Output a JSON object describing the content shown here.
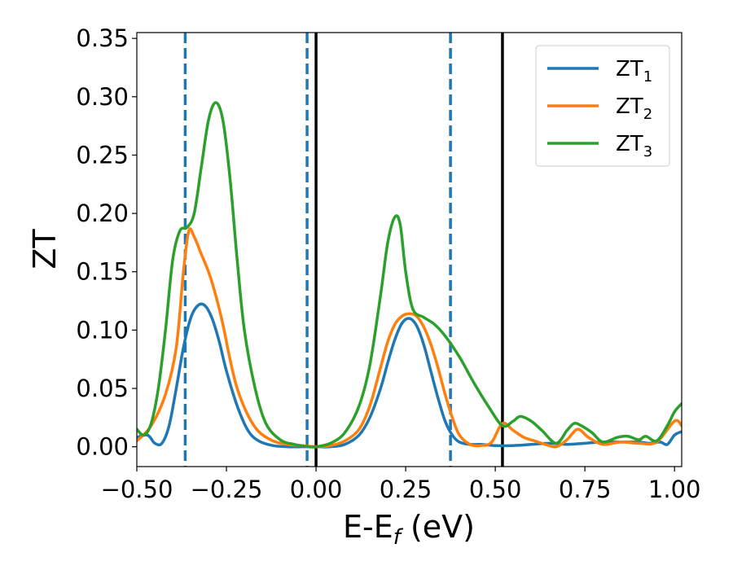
{
  "chart_data": {
    "type": "line",
    "xlabel": "E-E_f (eV)",
    "ylabel": "ZT",
    "xlim": [
      -0.5,
      1.02
    ],
    "ylim": [
      -0.017,
      0.355
    ],
    "xticks": [
      -0.5,
      -0.25,
      0.0,
      0.25,
      0.5,
      0.75,
      1.0
    ],
    "xtick_labels": [
      "−0.50",
      "−0.25",
      "0.00",
      "0.25",
      "0.50",
      "0.75",
      "1.00"
    ],
    "yticks": [
      0.0,
      0.05,
      0.1,
      0.15,
      0.2,
      0.25,
      0.3,
      0.35
    ],
    "ytick_labels": [
      "0.00",
      "0.05",
      "0.10",
      "0.15",
      "0.20",
      "0.25",
      "0.30",
      "0.35"
    ],
    "grid": false,
    "legend_position": "top-right",
    "series": [
      {
        "name": "ZT_1",
        "color": "#1f77b4",
        "x": [
          -0.5,
          -0.47,
          -0.45,
          -0.43,
          -0.41,
          -0.39,
          -0.37,
          -0.35,
          -0.33,
          -0.31,
          -0.29,
          -0.27,
          -0.25,
          -0.22,
          -0.19,
          -0.16,
          -0.12,
          -0.08,
          -0.04,
          0.0,
          0.04,
          0.08,
          0.12,
          0.15,
          0.18,
          0.2,
          0.22,
          0.24,
          0.26,
          0.28,
          0.3,
          0.32,
          0.34,
          0.36,
          0.38,
          0.4,
          0.43,
          0.46,
          0.5,
          0.55,
          0.6,
          0.65,
          0.7,
          0.75,
          0.8,
          0.85,
          0.9,
          0.93,
          0.96,
          0.98,
          1.0,
          1.02
        ],
        "values": [
          0.008,
          0.01,
          0.003,
          0.003,
          0.018,
          0.05,
          0.085,
          0.11,
          0.121,
          0.121,
          0.11,
          0.09,
          0.065,
          0.035,
          0.014,
          0.005,
          0.001,
          0.0,
          0.0,
          0.0,
          0.0,
          0.002,
          0.01,
          0.025,
          0.05,
          0.072,
          0.092,
          0.106,
          0.11,
          0.104,
          0.088,
          0.065,
          0.042,
          0.022,
          0.01,
          0.004,
          0.002,
          0.002,
          0.001,
          0.001,
          0.002,
          0.003,
          0.002,
          0.003,
          0.004,
          0.004,
          0.004,
          0.003,
          0.004,
          0.002,
          0.01,
          0.013
        ]
      },
      {
        "name": "ZT_2",
        "color": "#ff7f0e",
        "x": [
          -0.5,
          -0.46,
          -0.42,
          -0.39,
          -0.37,
          -0.355,
          -0.34,
          -0.32,
          -0.3,
          -0.28,
          -0.26,
          -0.24,
          -0.22,
          -0.19,
          -0.16,
          -0.12,
          -0.08,
          -0.04,
          0.0,
          0.04,
          0.08,
          0.12,
          0.15,
          0.18,
          0.2,
          0.22,
          0.24,
          0.26,
          0.28,
          0.3,
          0.32,
          0.34,
          0.36,
          0.38,
          0.4,
          0.43,
          0.46,
          0.49,
          0.52,
          0.55,
          0.58,
          0.61,
          0.64,
          0.67,
          0.7,
          0.73,
          0.76,
          0.8,
          0.85,
          0.9,
          0.95,
          1.0,
          1.02
        ],
        "values": [
          0.005,
          0.018,
          0.045,
          0.085,
          0.15,
          0.185,
          0.18,
          0.165,
          0.15,
          0.13,
          0.105,
          0.075,
          0.05,
          0.027,
          0.013,
          0.005,
          0.002,
          0.001,
          0.0,
          0.001,
          0.005,
          0.015,
          0.035,
          0.068,
          0.09,
          0.105,
          0.112,
          0.114,
          0.112,
          0.103,
          0.088,
          0.068,
          0.045,
          0.025,
          0.01,
          0.002,
          0.001,
          0.004,
          0.02,
          0.014,
          0.008,
          0.005,
          0.002,
          0.0,
          0.006,
          0.015,
          0.008,
          0.002,
          0.004,
          0.003,
          0.004,
          0.022,
          0.018
        ]
      },
      {
        "name": "ZT_3",
        "color": "#2ca02c",
        "x": [
          -0.5,
          -0.48,
          -0.46,
          -0.44,
          -0.42,
          -0.4,
          -0.38,
          -0.36,
          -0.34,
          -0.32,
          -0.3,
          -0.28,
          -0.26,
          -0.24,
          -0.22,
          -0.2,
          -0.17,
          -0.14,
          -0.1,
          -0.06,
          -0.02,
          0.0,
          0.04,
          0.08,
          0.12,
          0.15,
          0.18,
          0.2,
          0.22,
          0.235,
          0.25,
          0.27,
          0.3,
          0.33,
          0.36,
          0.4,
          0.44,
          0.48,
          0.52,
          0.55,
          0.57,
          0.6,
          0.63,
          0.67,
          0.7,
          0.72,
          0.74,
          0.77,
          0.8,
          0.84,
          0.87,
          0.9,
          0.92,
          0.95,
          0.98,
          1.0,
          1.02
        ],
        "values": [
          0.015,
          0.01,
          0.02,
          0.05,
          0.1,
          0.16,
          0.185,
          0.188,
          0.2,
          0.24,
          0.28,
          0.295,
          0.28,
          0.23,
          0.16,
          0.1,
          0.05,
          0.02,
          0.006,
          0.002,
          0.0,
          0.0,
          0.003,
          0.012,
          0.035,
          0.07,
          0.13,
          0.175,
          0.197,
          0.19,
          0.15,
          0.118,
          0.111,
          0.105,
          0.095,
          0.077,
          0.055,
          0.035,
          0.018,
          0.022,
          0.026,
          0.022,
          0.014,
          0.003,
          0.014,
          0.02,
          0.018,
          0.012,
          0.004,
          0.008,
          0.009,
          0.006,
          0.009,
          0.005,
          0.018,
          0.03,
          0.037
        ]
      }
    ],
    "vertical_lines": [
      {
        "x": -0.365,
        "style": "dashed",
        "color": "#1f77b4"
      },
      {
        "x": -0.025,
        "style": "dashed",
        "color": "#1f77b4"
      },
      {
        "x": 0.375,
        "style": "dashed",
        "color": "#1f77b4"
      },
      {
        "x": 0.0,
        "style": "solid",
        "color": "#000000"
      },
      {
        "x": 0.52,
        "style": "solid",
        "color": "#000000"
      }
    ]
  }
}
